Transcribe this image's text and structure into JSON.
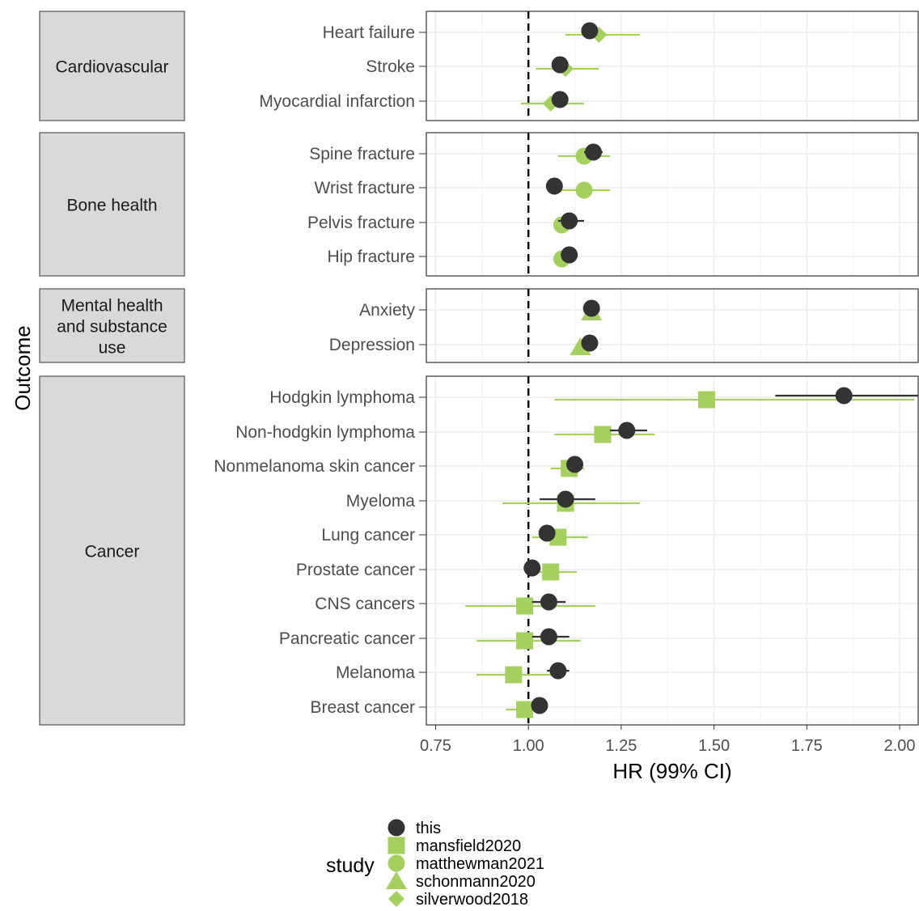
{
  "chart_data": {
    "type": "scatter",
    "subtype": "forest-plot",
    "title": "",
    "xlabel": "HR (99% CI)",
    "ylabel": "Outcome",
    "xlim": [
      0.725,
      2.05
    ],
    "xticks": [
      "0.75",
      "1.00",
      "1.25",
      "1.50",
      "1.75",
      "2.00"
    ],
    "xtick_values": [
      0.75,
      1.0,
      1.25,
      1.5,
      1.75,
      2.0
    ],
    "reference_line": 1.0,
    "grid": true,
    "legend": {
      "title": "study",
      "placement": "bottom",
      "entries": [
        {
          "name": "this",
          "shape": "circle",
          "color": "#333333"
        },
        {
          "name": "mansfield2020",
          "shape": "square",
          "color": "#a5cf5f"
        },
        {
          "name": "matthewman2021",
          "shape": "circle",
          "color": "#a5cf5f"
        },
        {
          "name": "schonmann2020",
          "shape": "triangle",
          "color": "#a5cf5f"
        },
        {
          "name": "silverwood2018",
          "shape": "diamond",
          "color": "#a5cf5f"
        }
      ]
    },
    "panels": [
      {
        "label": "Cardiovascular",
        "outcomes": [
          {
            "name": "Heart failure",
            "estimates": [
              {
                "study": "this",
                "hr": 1.165,
                "lo": 1.15,
                "hi": 1.18
              },
              {
                "study": "silverwood2018",
                "hr": 1.19,
                "lo": 1.1,
                "hi": 1.3
              }
            ]
          },
          {
            "name": "Stroke",
            "estimates": [
              {
                "study": "this",
                "hr": 1.085,
                "lo": 1.07,
                "hi": 1.1
              },
              {
                "study": "silverwood2018",
                "hr": 1.1,
                "lo": 1.02,
                "hi": 1.19
              }
            ]
          },
          {
            "name": "Myocardial infarction",
            "estimates": [
              {
                "study": "this",
                "hr": 1.085,
                "lo": 1.07,
                "hi": 1.1
              },
              {
                "study": "silverwood2018",
                "hr": 1.06,
                "lo": 0.98,
                "hi": 1.15
              }
            ]
          }
        ]
      },
      {
        "label": "Bone health",
        "outcomes": [
          {
            "name": "Spine fracture",
            "estimates": [
              {
                "study": "this",
                "hr": 1.175,
                "lo": 1.15,
                "hi": 1.2
              },
              {
                "study": "matthewman2021",
                "hr": 1.15,
                "lo": 1.08,
                "hi": 1.22
              }
            ]
          },
          {
            "name": "Wrist fracture",
            "estimates": [
              {
                "study": "this",
                "hr": 1.07,
                "lo": 1.055,
                "hi": 1.085
              },
              {
                "study": "matthewman2021",
                "hr": 1.15,
                "lo": 1.08,
                "hi": 1.22
              }
            ]
          },
          {
            "name": "Pelvis fracture",
            "estimates": [
              {
                "study": "this",
                "hr": 1.11,
                "lo": 1.08,
                "hi": 1.15
              },
              {
                "study": "matthewman2021",
                "hr": 1.09,
                "lo": 1.07,
                "hi": 1.11
              }
            ]
          },
          {
            "name": "Hip fracture",
            "estimates": [
              {
                "study": "this",
                "hr": 1.11,
                "lo": 1.09,
                "hi": 1.13
              },
              {
                "study": "matthewman2021",
                "hr": 1.09,
                "lo": 1.07,
                "hi": 1.11
              }
            ]
          }
        ]
      },
      {
        "label": "Mental health and substance use",
        "label_lines": [
          "Mental health",
          "and substance",
          "use"
        ],
        "outcomes": [
          {
            "name": "Anxiety",
            "estimates": [
              {
                "study": "this",
                "hr": 1.17,
                "lo": 1.155,
                "hi": 1.185
              },
              {
                "study": "schonmann2020",
                "hr": 1.17,
                "lo": 1.16,
                "hi": 1.18
              }
            ]
          },
          {
            "name": "Depression",
            "estimates": [
              {
                "study": "this",
                "hr": 1.165,
                "lo": 1.15,
                "hi": 1.18
              },
              {
                "study": "schonmann2020",
                "hr": 1.14,
                "lo": 1.13,
                "hi": 1.15
              }
            ]
          }
        ]
      },
      {
        "label": "Cancer",
        "outcomes": [
          {
            "name": "Hodgkin lymphoma",
            "estimates": [
              {
                "study": "this",
                "hr": 1.85,
                "lo": 1.665,
                "hi": 2.06
              },
              {
                "study": "mansfield2020",
                "hr": 1.48,
                "lo": 1.07,
                "hi": 2.04
              }
            ]
          },
          {
            "name": "Non-hodgkin lymphoma",
            "estimates": [
              {
                "study": "this",
                "hr": 1.265,
                "lo": 1.22,
                "hi": 1.32
              },
              {
                "study": "mansfield2020",
                "hr": 1.2,
                "lo": 1.07,
                "hi": 1.34
              }
            ]
          },
          {
            "name": "Nonmelanoma skin cancer",
            "estimates": [
              {
                "study": "this",
                "hr": 1.125,
                "lo": 1.11,
                "hi": 1.14
              },
              {
                "study": "mansfield2020",
                "hr": 1.11,
                "lo": 1.06,
                "hi": 1.15
              }
            ]
          },
          {
            "name": "Myeloma",
            "estimates": [
              {
                "study": "this",
                "hr": 1.1,
                "lo": 1.03,
                "hi": 1.18
              },
              {
                "study": "mansfield2020",
                "hr": 1.1,
                "lo": 0.93,
                "hi": 1.3
              }
            ]
          },
          {
            "name": "Lung cancer",
            "estimates": [
              {
                "study": "this",
                "hr": 1.05,
                "lo": 1.03,
                "hi": 1.07
              },
              {
                "study": "mansfield2020",
                "hr": 1.08,
                "lo": 1.01,
                "hi": 1.16
              }
            ]
          },
          {
            "name": "Prostate cancer",
            "estimates": [
              {
                "study": "this",
                "hr": 1.01,
                "lo": 0.995,
                "hi": 1.025
              },
              {
                "study": "mansfield2020",
                "hr": 1.06,
                "lo": 1.0,
                "hi": 1.13
              }
            ]
          },
          {
            "name": "CNS cancers",
            "estimates": [
              {
                "study": "this",
                "hr": 1.055,
                "lo": 1.01,
                "hi": 1.1
              },
              {
                "study": "mansfield2020",
                "hr": 0.99,
                "lo": 0.83,
                "hi": 1.18
              }
            ]
          },
          {
            "name": "Pancreatic cancer",
            "estimates": [
              {
                "study": "this",
                "hr": 1.055,
                "lo": 1.01,
                "hi": 1.11
              },
              {
                "study": "mansfield2020",
                "hr": 0.99,
                "lo": 0.86,
                "hi": 1.14
              }
            ]
          },
          {
            "name": "Melanoma",
            "estimates": [
              {
                "study": "this",
                "hr": 1.08,
                "lo": 1.05,
                "hi": 1.11
              },
              {
                "study": "mansfield2020",
                "hr": 0.96,
                "lo": 0.86,
                "hi": 1.07
              }
            ]
          },
          {
            "name": "Breast cancer",
            "estimates": [
              {
                "study": "this",
                "hr": 1.03,
                "lo": 1.015,
                "hi": 1.045
              },
              {
                "study": "mansfield2020",
                "hr": 0.99,
                "lo": 0.94,
                "hi": 1.04
              }
            ]
          }
        ]
      }
    ]
  }
}
